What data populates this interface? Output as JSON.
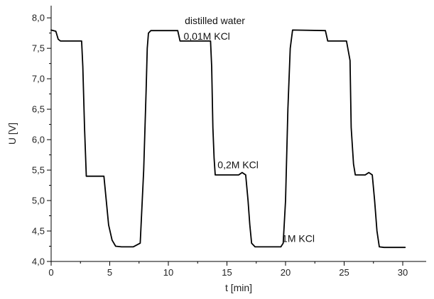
{
  "chart_data": {
    "type": "line",
    "title": "",
    "xlabel": "t [min]",
    "ylabel": "U [V]",
    "xlim": [
      0,
      32
    ],
    "ylim": [
      4.0,
      8.2
    ],
    "x_ticks": [
      0,
      5,
      10,
      15,
      20,
      25,
      30
    ],
    "x_tick_labels": [
      "0",
      "5",
      "10",
      "15",
      "20",
      "25",
      "30"
    ],
    "y_ticks": [
      4.0,
      4.5,
      5.0,
      5.5,
      6.0,
      6.5,
      7.0,
      7.5,
      8.0
    ],
    "y_tick_labels": [
      "4,0",
      "4,5",
      "5,0",
      "5,5",
      "6,0",
      "6,5",
      "7,0",
      "7,5",
      "8,0"
    ],
    "grid": false,
    "line_color": "#000000",
    "series": [
      {
        "x": [
          0.0,
          0.4,
          0.6,
          0.8,
          2.6,
          2.7,
          2.85,
          3.0,
          4.5,
          4.7,
          4.9,
          5.2,
          5.5,
          6.0,
          7.0,
          7.6,
          7.9,
          8.1,
          8.2,
          8.3,
          8.5,
          10.8,
          11.0,
          11.2,
          13.6,
          13.7,
          13.8,
          13.9,
          14.0,
          16.0,
          16.3,
          16.6,
          16.8,
          16.95,
          17.1,
          17.4,
          18.5,
          19.6,
          19.8,
          20.0,
          20.2,
          20.4,
          20.6,
          23.4,
          23.6,
          23.9,
          25.0,
          25.2,
          25.5,
          25.6,
          25.8,
          25.95,
          26.1,
          26.8,
          27.1,
          27.4,
          27.6,
          27.8,
          28.0,
          28.4,
          30.2
        ],
        "y": [
          7.8,
          7.78,
          7.65,
          7.62,
          7.62,
          7.2,
          6.2,
          5.4,
          5.4,
          5.0,
          4.6,
          4.35,
          4.25,
          4.24,
          4.24,
          4.3,
          5.5,
          6.8,
          7.5,
          7.75,
          7.79,
          7.79,
          7.62,
          7.62,
          7.62,
          7.2,
          6.2,
          5.7,
          5.42,
          5.42,
          5.46,
          5.42,
          5.0,
          4.6,
          4.3,
          4.24,
          4.24,
          4.24,
          4.3,
          5.0,
          6.5,
          7.5,
          7.8,
          7.79,
          7.62,
          7.62,
          7.62,
          7.62,
          7.3,
          6.2,
          5.6,
          5.42,
          5.42,
          5.42,
          5.46,
          5.42,
          5.0,
          4.5,
          4.24,
          4.23,
          4.23
        ]
      }
    ],
    "annotations": [
      {
        "text": "distilled water",
        "x": 11.4,
        "y": 7.9
      },
      {
        "text": "0,01M KCl",
        "x": 11.3,
        "y": 7.64
      },
      {
        "text": "0,2M KCl",
        "x": 14.2,
        "y": 5.53
      },
      {
        "text": "1M KCl",
        "x": 19.7,
        "y": 4.32
      }
    ]
  }
}
